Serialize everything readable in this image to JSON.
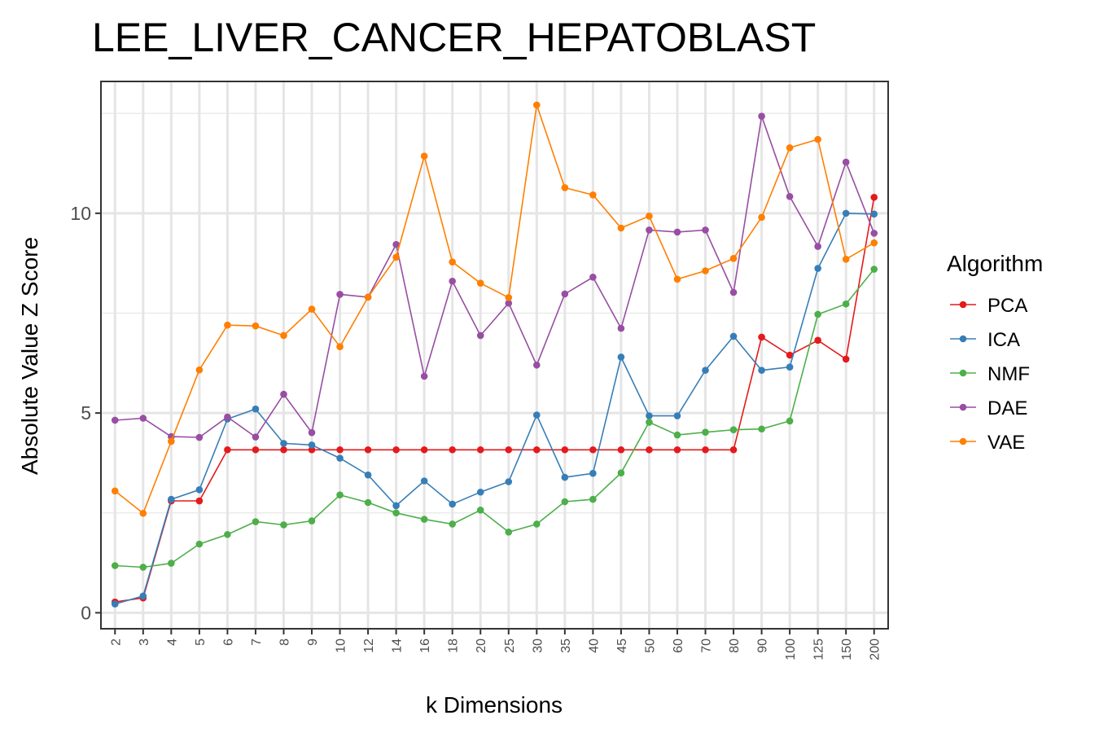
{
  "chart_data": {
    "type": "line",
    "title": "LEE_LIVER_CANCER_HEPATOBLAST",
    "xlabel": "k Dimensions",
    "ylabel": "Absolute Value Z Score",
    "categories": [
      "2",
      "3",
      "4",
      "5",
      "6",
      "7",
      "8",
      "9",
      "10",
      "12",
      "14",
      "16",
      "18",
      "20",
      "25",
      "30",
      "35",
      "40",
      "45",
      "50",
      "60",
      "70",
      "80",
      "90",
      "100",
      "125",
      "150",
      "200"
    ],
    "yticks": [
      0,
      5,
      10
    ],
    "ylim": [
      -0.4,
      13.3
    ],
    "grid": true,
    "legend": {
      "title": "Algorithm",
      "position": "right"
    },
    "series": [
      {
        "name": "PCA",
        "color": "#e41a1c",
        "values": [
          0.27,
          0.37,
          2.8,
          2.8,
          4.08,
          4.08,
          4.08,
          4.08,
          4.08,
          4.08,
          4.08,
          4.08,
          4.08,
          4.08,
          4.08,
          4.08,
          4.08,
          4.08,
          4.08,
          4.08,
          4.08,
          4.08,
          4.08,
          6.9,
          6.45,
          6.82,
          6.35,
          10.4
        ]
      },
      {
        "name": "ICA",
        "color": "#377eb8",
        "values": [
          0.22,
          0.42,
          2.84,
          3.08,
          4.85,
          5.1,
          4.24,
          4.2,
          3.87,
          3.45,
          2.68,
          3.3,
          2.72,
          3.02,
          3.28,
          4.95,
          3.39,
          3.49,
          6.4,
          4.93,
          4.93,
          6.07,
          6.92,
          6.07,
          6.15,
          8.62,
          10.0,
          9.98
        ]
      },
      {
        "name": "NMF",
        "color": "#4daf4a",
        "values": [
          1.18,
          1.14,
          1.24,
          1.72,
          1.96,
          2.28,
          2.2,
          2.3,
          2.95,
          2.76,
          2.5,
          2.34,
          2.22,
          2.57,
          2.02,
          2.22,
          2.78,
          2.84,
          3.5,
          4.77,
          4.45,
          4.52,
          4.58,
          4.6,
          4.8,
          7.47,
          7.73,
          8.6
        ]
      },
      {
        "name": "DAE",
        "color": "#984ea3",
        "values": [
          4.82,
          4.87,
          4.41,
          4.39,
          4.9,
          4.4,
          5.47,
          4.51,
          7.97,
          7.9,
          9.22,
          5.92,
          8.3,
          6.94,
          7.75,
          6.2,
          7.98,
          8.4,
          7.12,
          9.58,
          9.53,
          9.58,
          8.02,
          12.43,
          10.42,
          9.17,
          11.28,
          9.5
        ]
      },
      {
        "name": "VAE",
        "color": "#ff7f00",
        "values": [
          3.05,
          2.49,
          4.29,
          6.08,
          7.2,
          7.18,
          6.94,
          7.6,
          6.66,
          7.9,
          8.9,
          11.43,
          8.78,
          8.25,
          7.89,
          12.71,
          10.64,
          10.46,
          9.63,
          9.93,
          8.35,
          8.56,
          8.87,
          9.9,
          11.64,
          11.85,
          8.85,
          9.26
        ]
      }
    ]
  }
}
